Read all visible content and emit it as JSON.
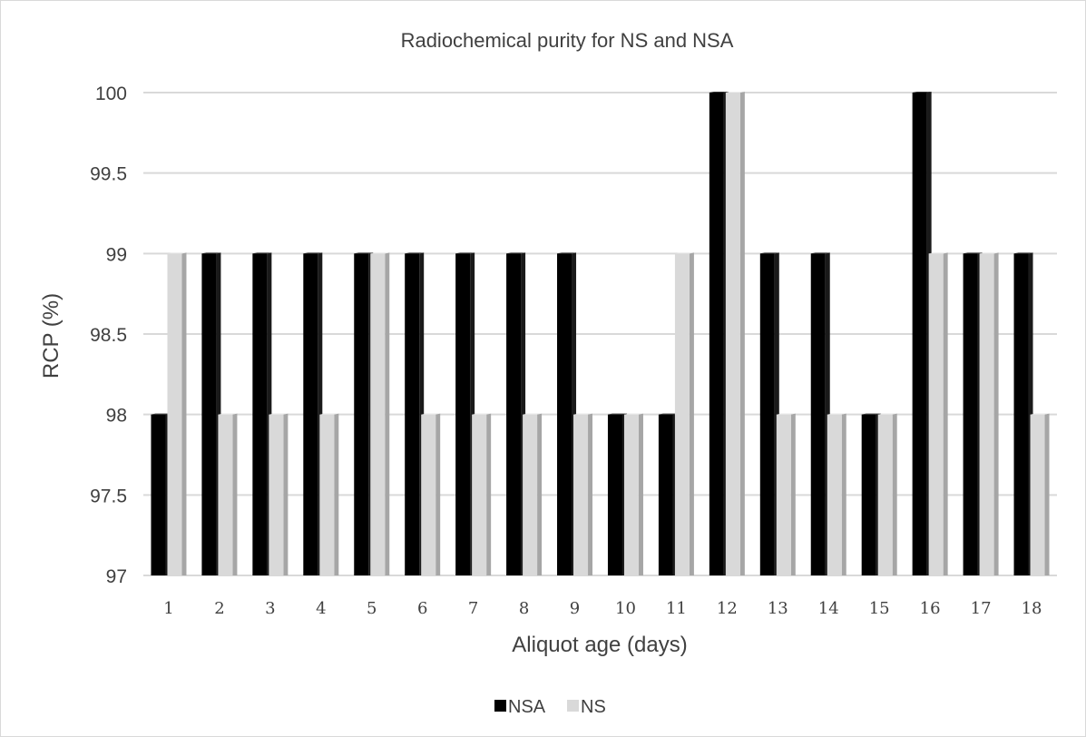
{
  "chart_data": {
    "type": "bar",
    "title": "Radiochemical purity for NS and NSA",
    "xlabel": "Aliquot age (days)",
    "ylabel": "RCP (%)",
    "ylim": [
      97,
      100
    ],
    "yticks": [
      "97",
      "97.5",
      "98",
      "98.5",
      "99",
      "99.5",
      "100"
    ],
    "categories": [
      "1",
      "2",
      "3",
      "4",
      "5",
      "6",
      "7",
      "8",
      "9",
      "10",
      "11",
      "12",
      "13",
      "14",
      "15",
      "16",
      "17",
      "18"
    ],
    "series": [
      {
        "name": "NSA",
        "color": "#000000",
        "values": [
          98,
          99,
          99,
          99,
          99,
          99,
          99,
          99,
          99,
          98,
          98,
          100,
          99,
          99,
          98,
          100,
          99,
          99
        ]
      },
      {
        "name": "NS",
        "color": "#d9d9d9",
        "values": [
          99,
          98,
          98,
          98,
          99,
          98,
          98,
          98,
          98,
          98,
          99,
          100,
          98,
          98,
          98,
          99,
          99,
          98
        ]
      }
    ],
    "grid": true,
    "legend_position": "bottom"
  }
}
